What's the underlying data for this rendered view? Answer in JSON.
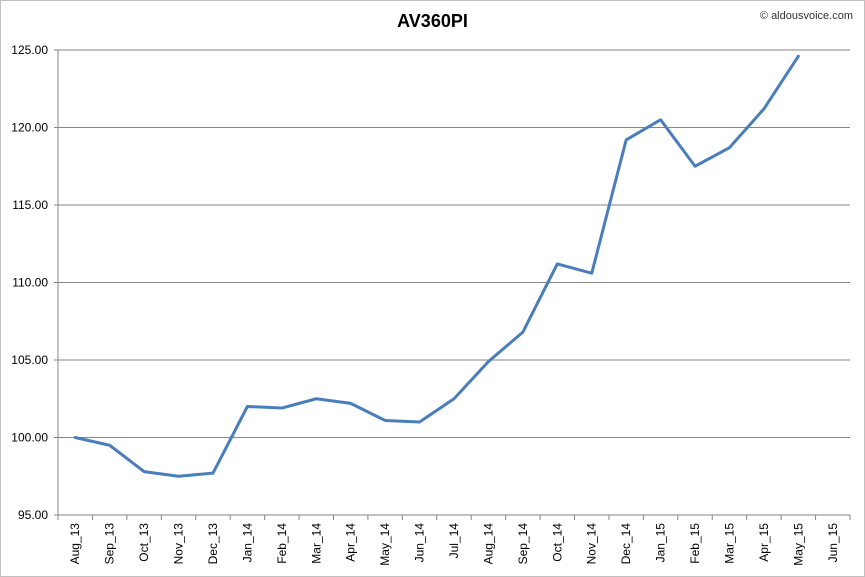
{
  "watermark": "© aldousvoice.com",
  "chart_data": {
    "type": "line",
    "title": "AV360PI",
    "xlabel": "",
    "ylabel": "",
    "ylim": [
      95,
      125
    ],
    "y_ticks": [
      "95.00",
      "100.00",
      "105.00",
      "110.00",
      "115.00",
      "120.00",
      "125.00"
    ],
    "grid": true,
    "legend": "none",
    "categories": [
      "Aug_13",
      "Sep_13",
      "Oct_13",
      "Nov_13",
      "Dec_13",
      "Jan_14",
      "Feb_14",
      "Mar_14",
      "Apr_14",
      "May_14",
      "Jun_14",
      "Jul_14",
      "Aug_14",
      "Sep_14",
      "Oct_14",
      "Nov_14",
      "Dec_14",
      "Jan_15",
      "Feb_15",
      "Mar_15",
      "Apr_15",
      "May_15",
      "Jun_15"
    ],
    "series": [
      {
        "color": "#4a7ebb",
        "values": [
          100.0,
          99.5,
          97.8,
          97.5,
          97.7,
          102.0,
          101.9,
          102.5,
          102.2,
          101.1,
          101.0,
          102.5,
          104.9,
          106.8,
          111.2,
          110.6,
          119.2,
          120.5,
          117.5,
          118.7,
          121.2,
          124.6,
          null
        ]
      }
    ]
  }
}
